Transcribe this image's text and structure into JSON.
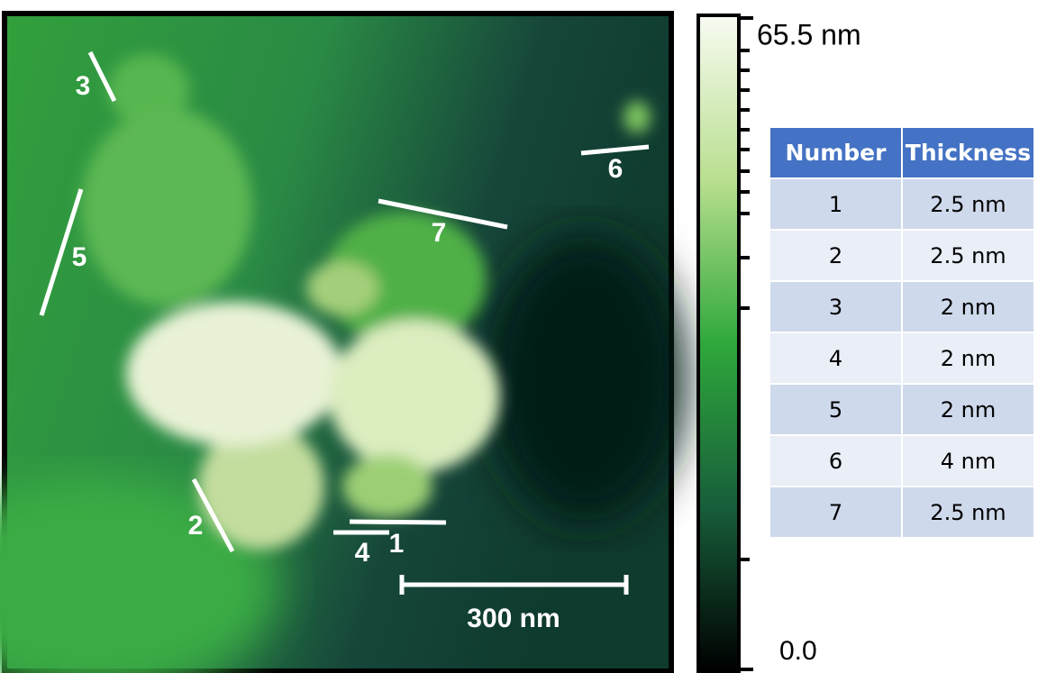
{
  "image": {
    "markers": [
      "1",
      "2",
      "3",
      "4",
      "5",
      "6",
      "7"
    ],
    "scale_bar": "300 nm"
  },
  "colorbar": {
    "max_label": "65.5 nm",
    "min_label": "0.0"
  },
  "table": {
    "header": [
      "Number",
      "Thickness"
    ],
    "rows": [
      [
        "1",
        "2.5 nm"
      ],
      [
        "2",
        "2.5 nm"
      ],
      [
        "3",
        "2 nm"
      ],
      [
        "4",
        "2 nm"
      ],
      [
        "5",
        "2 nm"
      ],
      [
        "6",
        "4 nm"
      ],
      [
        "7",
        "2.5 nm"
      ]
    ]
  }
}
